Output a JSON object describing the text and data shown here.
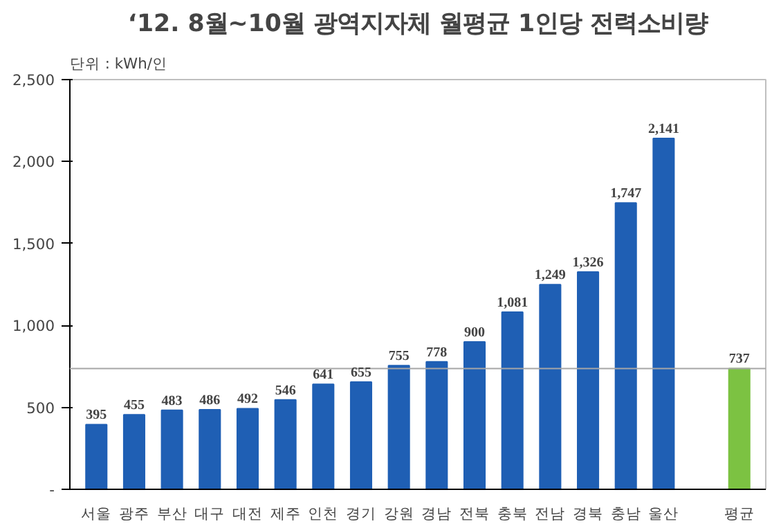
{
  "chart_data": {
    "type": "bar",
    "title": "‘12. 8월~10월 광역지자체 월평균 1인당 전력소비량",
    "subtitle": "단위 : kWh/인",
    "categories": [
      "서울",
      "광주",
      "부산",
      "대구",
      "대전",
      "제주",
      "인천",
      "경기",
      "강원",
      "경남",
      "전북",
      "충북",
      "전남",
      "경북",
      "충남",
      "울산",
      null,
      "평균"
    ],
    "values": [
      395,
      455,
      483,
      486,
      492,
      546,
      641,
      655,
      755,
      778,
      900,
      1081,
      1249,
      1326,
      1747,
      2141,
      null,
      737
    ],
    "colors": [
      "#1f5fb4",
      "#1f5fb4",
      "#1f5fb4",
      "#1f5fb4",
      "#1f5fb4",
      "#1f5fb4",
      "#1f5fb4",
      "#1f5fb4",
      "#1f5fb4",
      "#1f5fb4",
      "#1f5fb4",
      "#1f5fb4",
      "#1f5fb4",
      "#1f5fb4",
      "#1f5fb4",
      "#1f5fb4",
      "#1f5fb4",
      "#7cc242"
    ],
    "ylim": [
      0,
      2500
    ],
    "yticks": [
      {
        "value": 0,
        "label": "-"
      },
      500,
      {
        "value": 1000,
        "label": "1,000"
      },
      {
        "value": 1500,
        "label": "1,500"
      },
      {
        "value": 2000,
        "label": "2,000"
      },
      {
        "value": 2500,
        "label": "2,500"
      }
    ],
    "ref_lines": [
      {
        "axis": "y",
        "value": 737,
        "label": null,
        "color": "#a6a6a6"
      }
    ],
    "value_labels": [
      "395",
      "455",
      "483",
      "486",
      "492",
      "546",
      "641",
      "655",
      "755",
      "778",
      "900",
      "1,081",
      "1,249",
      "1,326",
      "1,747",
      "2,141",
      null,
      "737"
    ],
    "grid": false
  }
}
